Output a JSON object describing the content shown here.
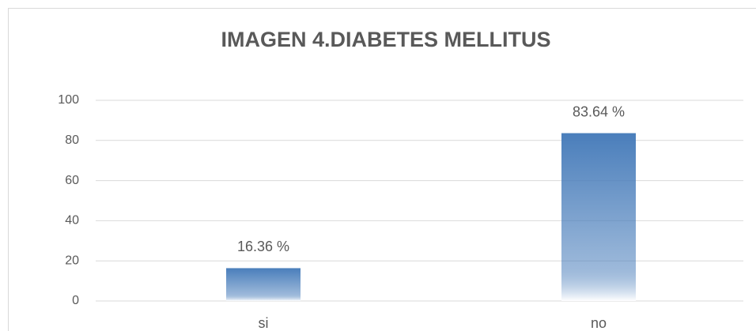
{
  "chart_data": {
    "type": "bar",
    "title": "IMAGEN 4.DIABETES MELLITUS",
    "categories": [
      "si",
      "no"
    ],
    "values": [
      16.36,
      83.64
    ],
    "value_labels": [
      "16.36 %",
      "83.64 %"
    ],
    "color": "#4a7ebb",
    "ylim": [
      0,
      100
    ],
    "yticks": [
      0,
      20,
      40,
      60,
      80,
      100
    ],
    "grid": true
  }
}
